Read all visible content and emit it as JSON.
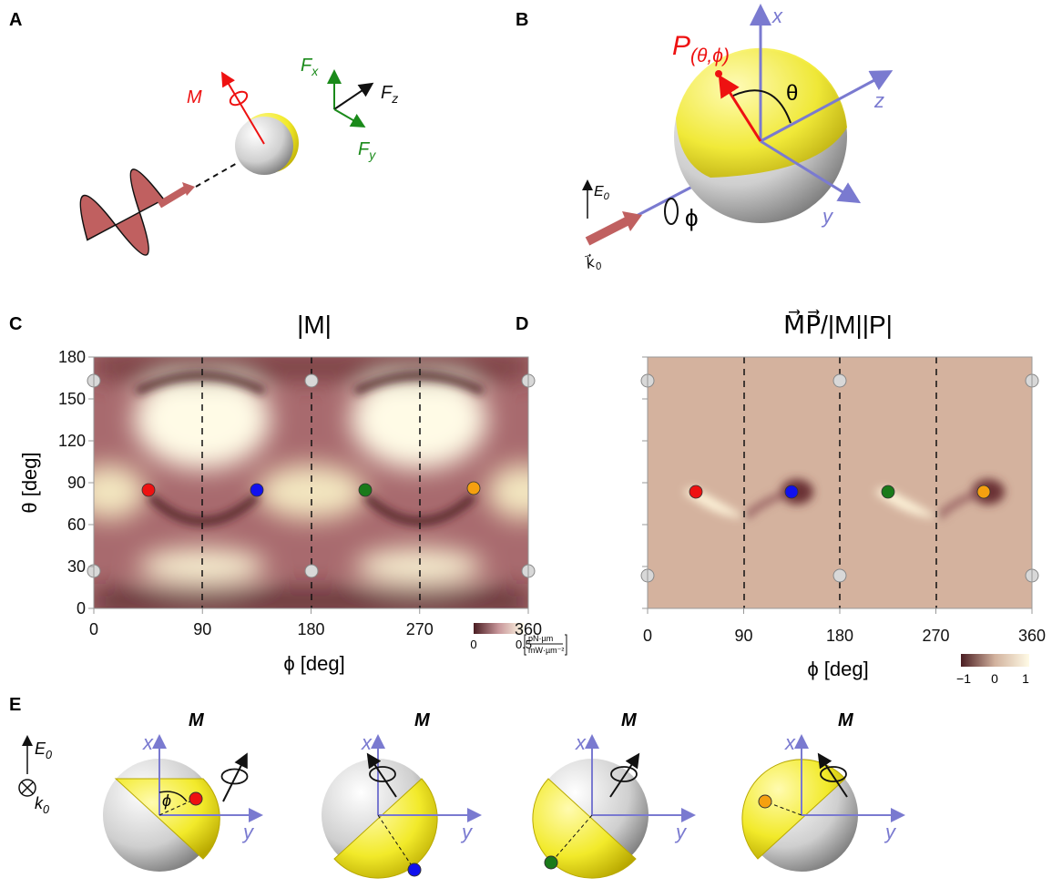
{
  "panels": {
    "A": {
      "label": "A",
      "moment": "M",
      "force_x": {
        "main": "F",
        "sub": "x"
      },
      "force_z": {
        "main": "F",
        "sub": "z"
      },
      "force_y": {
        "main": "F",
        "sub": "y"
      }
    },
    "B": {
      "label": "B",
      "point": {
        "main": "P",
        "sub": "(θ,ϕ)"
      },
      "axis_x": "x",
      "axis_z": "z",
      "axis_y": "y",
      "polar": "θ",
      "azimuth": "ϕ",
      "field": {
        "main": "E",
        "sub": "0"
      },
      "wavevector": {
        "main": "k⃗",
        "sub": "0"
      }
    },
    "C": {
      "label": "C",
      "title": "|M|",
      "x_label": "ϕ [deg]",
      "y_label": "θ [deg]",
      "xlim": [
        0,
        360
      ],
      "ylim": [
        0,
        180
      ],
      "xticks": [
        0,
        90,
        180,
        270,
        360
      ],
      "yticks": [
        0,
        30,
        60,
        90,
        120,
        150,
        180
      ],
      "colorbar": {
        "lim": [
          0,
          0.5
        ],
        "ticks": [
          0,
          0.5
        ],
        "unit": {
          "top": "pN·µm",
          "bottom": "mW·µm⁻²"
        }
      }
    },
    "D": {
      "label": "D",
      "title": "M⃗P⃗/|M||P|",
      "x_label": "ϕ [deg]",
      "xlim": [
        0,
        360
      ],
      "xticks": [
        0,
        90,
        180,
        270,
        360
      ],
      "colorbar": {
        "lim": [
          -1,
          1
        ],
        "ticks": [
          {
            "value": -1,
            "label": "−1"
          },
          0,
          1
        ]
      }
    },
    "E": {
      "label": "E",
      "azimuth": "ϕ",
      "field": {
        "main": "E",
        "sub": "0"
      },
      "wavevector": {
        "main": "k",
        "sub": "0"
      },
      "spheres": [
        {
          "axis_x": "x",
          "axis_y": "y",
          "moment": "M"
        },
        {
          "axis_x": "x",
          "axis_y": "y",
          "moment": "M"
        },
        {
          "axis_x": "x",
          "axis_y": "y",
          "moment": "M"
        },
        {
          "axis_x": "x",
          "axis_y": "y",
          "moment": "M"
        }
      ]
    }
  }
}
